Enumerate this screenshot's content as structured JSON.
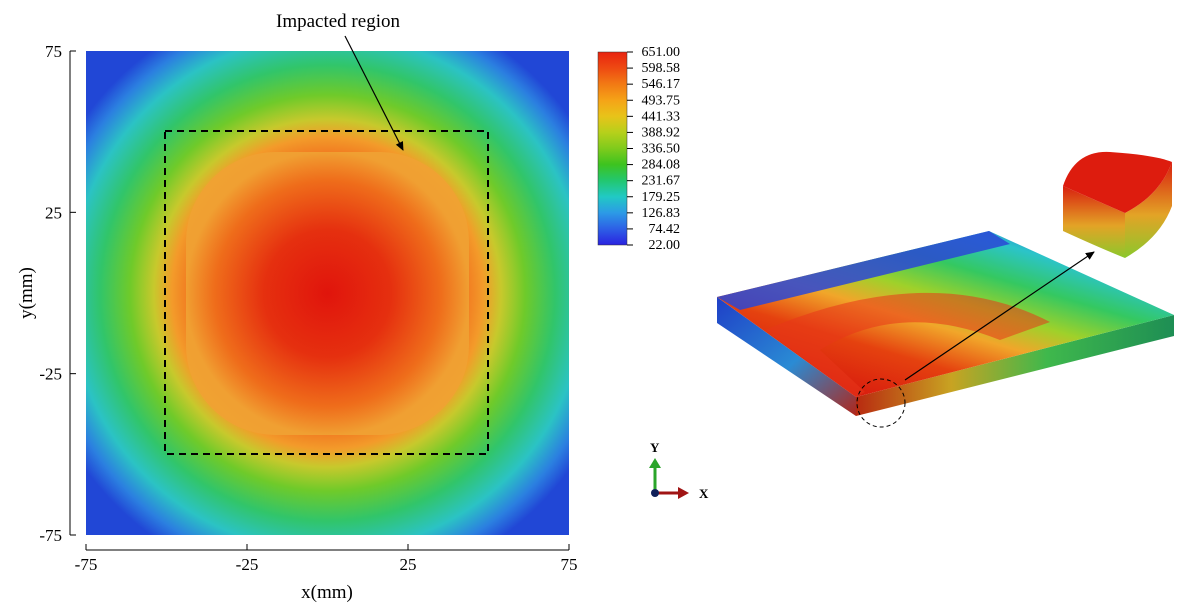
{
  "chart_data": [
    {
      "type": "heatmap",
      "title": "",
      "xlabel": "x(mm)",
      "ylabel": "y(mm)",
      "xlim": [
        -75,
        75
      ],
      "ylim": [
        -75,
        75
      ],
      "x_ticks": [
        "-75",
        "-25",
        "25",
        "75"
      ],
      "y_ticks": [
        "75",
        "25",
        "-25",
        "-75"
      ],
      "x_tick_values": [
        -75,
        -25,
        25,
        75
      ],
      "y_tick_values": [
        75,
        25,
        -25,
        -75
      ],
      "grid": false,
      "annotation": {
        "text": "Impacted region",
        "region_x": [
          -50,
          50
        ],
        "region_y": [
          -50,
          50
        ],
        "style": "dashed-rectangle"
      },
      "field": {
        "center": [
          0,
          0
        ],
        "max_value": 651.0,
        "min_value": 22.0,
        "description_values": [
          {
            "x": 0,
            "y": 0,
            "value": 651.0
          },
          {
            "x": -25,
            "y": 0,
            "value": 580
          },
          {
            "x": -45,
            "y": 0,
            "value": 470
          },
          {
            "x": -60,
            "y": 0,
            "value": 250
          },
          {
            "x": -75,
            "y": 0,
            "value": 90
          },
          {
            "x": -75,
            "y": 75,
            "value": 22
          }
        ]
      },
      "colorbar": {
        "levels": [
          "651.00",
          "598.58",
          "546.17",
          "493.75",
          "441.33",
          "388.92",
          "336.50",
          "284.08",
          "231.67",
          "179.25",
          "126.83",
          "74.42",
          "22.00"
        ],
        "colors": [
          "#e8230f",
          "#ee4a12",
          "#f27a14",
          "#f5a317",
          "#e8c319",
          "#b6d01b",
          "#7fcb1c",
          "#3dc31f",
          "#22c770",
          "#21c9c4",
          "#2c9ae6",
          "#2d5fe6",
          "#2a22e0"
        ]
      }
    },
    {
      "type": "heatmap",
      "title": "",
      "view": "3d-plate",
      "triad": {
        "y_label": "Y",
        "x_label": "X"
      }
    }
  ]
}
